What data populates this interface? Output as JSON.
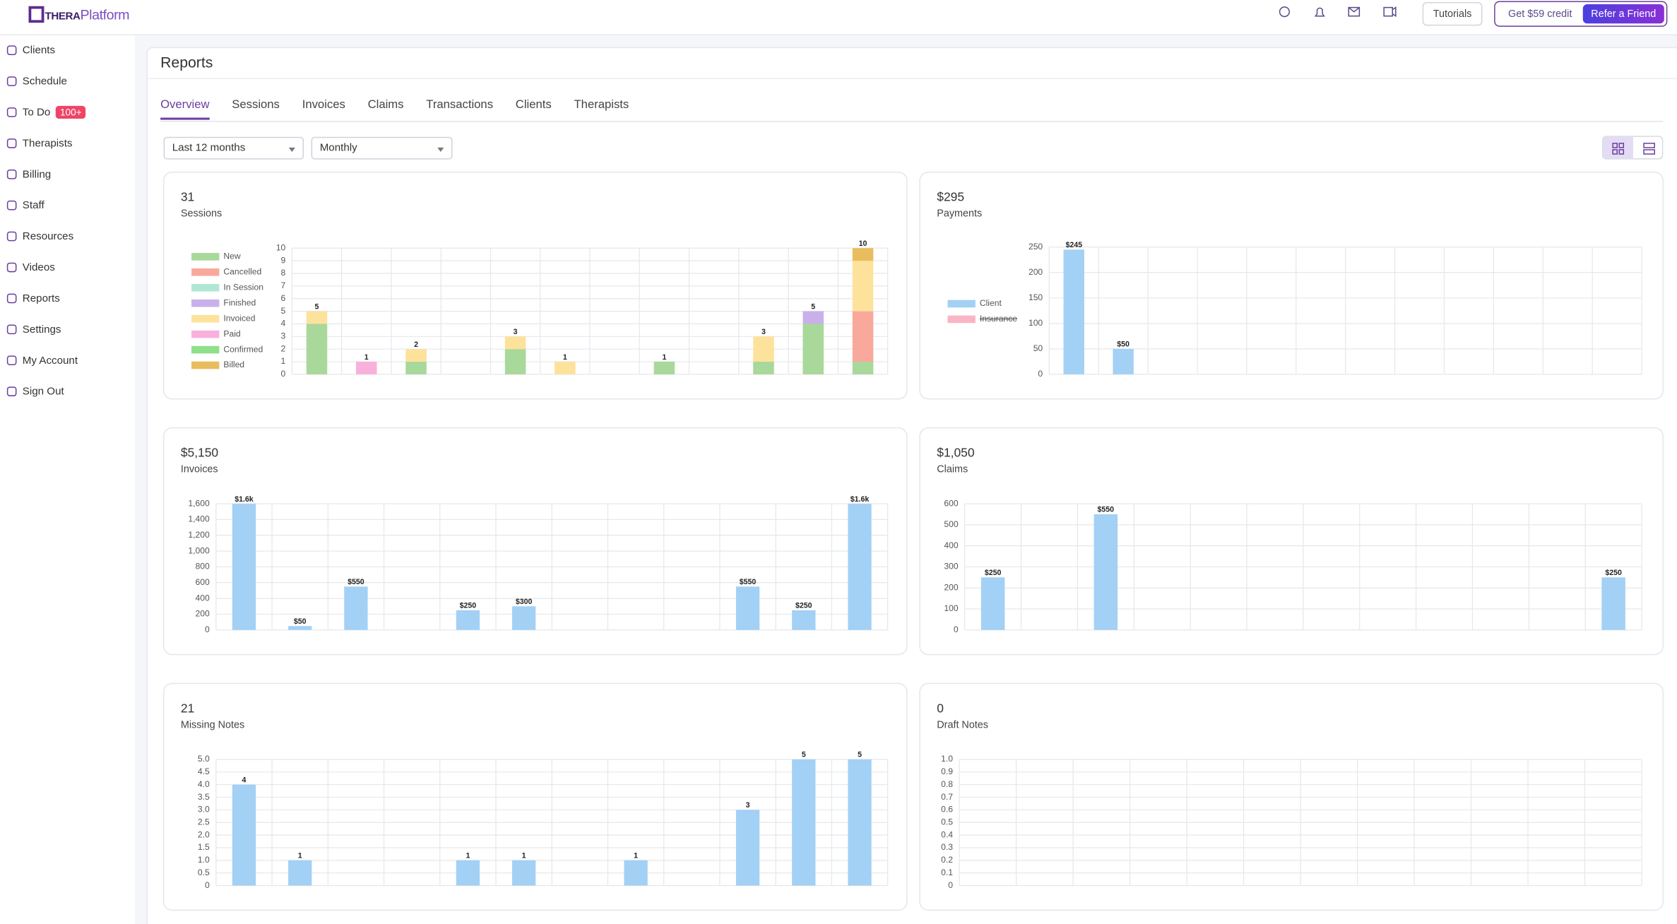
{
  "header": {
    "logo_prefix": "THERA",
    "logo_suffix": "Platform",
    "tutorials": "Tutorials",
    "credit": "Get $59 credit",
    "refer": "Refer a Friend"
  },
  "sidebar": {
    "items": [
      {
        "label": "Clients"
      },
      {
        "label": "Schedule"
      },
      {
        "label": "To Do",
        "badge": "100+"
      },
      {
        "label": "Therapists"
      },
      {
        "label": "Billing"
      },
      {
        "label": "Staff"
      },
      {
        "label": "Resources"
      },
      {
        "label": "Videos"
      },
      {
        "label": "Reports"
      },
      {
        "label": "Settings"
      },
      {
        "label": "My Account"
      },
      {
        "label": "Sign Out"
      }
    ]
  },
  "page": {
    "title": "Reports",
    "tabs": [
      "Overview",
      "Sessions",
      "Invoices",
      "Claims",
      "Transactions",
      "Clients",
      "Therapists"
    ],
    "active_tab": 0,
    "filters": [
      "Last 12 months",
      "Monthly"
    ]
  },
  "chart_data": [
    {
      "type": "stacked_bar",
      "title": "31",
      "subtitle": "Sessions",
      "legend": "left",
      "categories": [
        null,
        null,
        null,
        null,
        null,
        null,
        null,
        null,
        null,
        null,
        null,
        null
      ],
      "series": [
        {
          "name": "New",
          "color": "#a8d89a",
          "values": [
            4,
            0,
            1,
            0,
            2,
            0,
            0,
            1,
            0,
            1,
            4,
            1
          ]
        },
        {
          "name": "Cancelled",
          "color": "#f8a99b",
          "values": [
            0,
            0,
            0,
            0,
            0,
            0,
            0,
            0,
            0,
            0,
            0,
            4
          ]
        },
        {
          "name": "In Session",
          "color": "#b2e6d4",
          "values": [
            0,
            0,
            0,
            0,
            0,
            0,
            0,
            0,
            0,
            0,
            0,
            0
          ]
        },
        {
          "name": "Finished",
          "color": "#c9b0ea",
          "values": [
            0,
            0,
            0,
            0,
            0,
            0,
            0,
            0,
            0,
            0,
            1,
            0
          ]
        },
        {
          "name": "Invoiced",
          "color": "#fde29b",
          "values": [
            1,
            0,
            1,
            0,
            1,
            1,
            0,
            0,
            0,
            2,
            0,
            4
          ]
        },
        {
          "name": "Paid",
          "color": "#f9b1dc",
          "values": [
            0,
            1,
            0,
            0,
            0,
            0,
            0,
            0,
            0,
            0,
            0,
            0
          ]
        },
        {
          "name": "Confirmed",
          "color": "#8fe08a",
          "values": [
            0,
            0,
            0,
            0,
            0,
            0,
            0,
            0,
            0,
            0,
            0,
            0
          ]
        },
        {
          "name": "Billed",
          "color": "#e9bc5e",
          "values": [
            0,
            0,
            0,
            0,
            0,
            0,
            0,
            0,
            0,
            0,
            0,
            1
          ]
        }
      ],
      "totals": [
        5,
        1,
        2,
        null,
        3,
        1,
        null,
        1,
        null,
        3,
        5,
        10
      ],
      "ylim": [
        0,
        10
      ],
      "yticks": [
        0,
        1,
        2,
        3,
        4,
        5,
        6,
        7,
        8,
        9,
        10
      ],
      "grid": true
    },
    {
      "type": "bar",
      "title": "$295",
      "subtitle": "Payments",
      "legend": "left",
      "categories": [
        null,
        null,
        null,
        null,
        null,
        null,
        null,
        null,
        null,
        null,
        null,
        null
      ],
      "series": [
        {
          "name": "Client",
          "color": "#a3d0f5",
          "values": [
            245,
            50,
            0,
            0,
            0,
            0,
            0,
            0,
            0,
            0,
            0,
            0
          ],
          "value_labels": [
            "$245",
            "$50",
            null,
            null,
            null,
            null,
            null,
            null,
            null,
            null,
            null,
            null
          ]
        },
        {
          "name": "Insurance",
          "color": "#f9b5c4",
          "hidden": true,
          "values": [
            null,
            null,
            null,
            null,
            null,
            null,
            null,
            null,
            null,
            null,
            null,
            null
          ]
        }
      ],
      "ylim": [
        0,
        250
      ],
      "yticks": [
        0,
        50,
        100,
        150,
        200,
        250
      ],
      "grid": true
    },
    {
      "type": "bar",
      "title": "$5,150",
      "subtitle": "Invoices",
      "categories": [
        null,
        null,
        null,
        null,
        null,
        null,
        null,
        null,
        null,
        null,
        null,
        null
      ],
      "series": [
        {
          "color": "#a3d0f5",
          "values": [
            1600,
            50,
            550,
            0,
            250,
            300,
            0,
            0,
            0,
            550,
            250,
            1600
          ],
          "value_labels": [
            "$1.6k",
            "$50",
            "$550",
            null,
            "$250",
            "$300",
            null,
            null,
            null,
            "$550",
            "$250",
            "$1.6k"
          ]
        }
      ],
      "ylim": [
        0,
        1600
      ],
      "yticks": [
        0,
        200,
        400,
        600,
        800,
        {
          "value": 1000,
          "label": "1,000"
        },
        {
          "value": 1200,
          "label": "1,200"
        },
        {
          "value": 1400,
          "label": "1,400"
        },
        {
          "value": 1600,
          "label": "1,600"
        }
      ],
      "grid": true
    },
    {
      "type": "bar",
      "title": "$1,050",
      "subtitle": "Claims",
      "categories": [
        null,
        null,
        null,
        null,
        null,
        null,
        null,
        null,
        null,
        null,
        null,
        null
      ],
      "series": [
        {
          "color": "#a3d0f5",
          "values": [
            250,
            0,
            550,
            0,
            0,
            0,
            0,
            0,
            0,
            0,
            0,
            250
          ],
          "value_labels": [
            "$250",
            null,
            "$550",
            null,
            null,
            null,
            null,
            null,
            null,
            null,
            null,
            "$250"
          ]
        }
      ],
      "ylim": [
        0,
        600
      ],
      "yticks": [
        0,
        100,
        200,
        300,
        400,
        500,
        600
      ],
      "grid": true
    },
    {
      "type": "bar",
      "title": "21",
      "subtitle": "Missing Notes",
      "categories": [
        null,
        null,
        null,
        null,
        null,
        null,
        null,
        null,
        null,
        null,
        null,
        null
      ],
      "series": [
        {
          "color": "#a3d0f5",
          "values": [
            4,
            1,
            0,
            0,
            1,
            1,
            0,
            1,
            0,
            3,
            5,
            5
          ],
          "value_labels": [
            "4",
            "1",
            null,
            null,
            "1",
            "1",
            null,
            "1",
            null,
            "3",
            "5",
            "5"
          ]
        }
      ],
      "ylim": [
        0,
        5
      ],
      "yticks": [
        0,
        0.5,
        {
          "value": 1,
          "label": "1.0"
        },
        1.5,
        {
          "value": 2,
          "label": "2.0"
        },
        2.5,
        {
          "value": 3,
          "label": "3.0"
        },
        3.5,
        {
          "value": 4,
          "label": "4.0"
        },
        4.5,
        {
          "value": 5,
          "label": "5.0"
        }
      ],
      "grid": true
    },
    {
      "type": "bar",
      "title": "0",
      "subtitle": "Draft Notes",
      "categories": [
        null,
        null,
        null,
        null,
        null,
        null,
        null,
        null,
        null,
        null,
        null,
        null
      ],
      "series": [
        {
          "color": "#a3d0f5",
          "values": [
            0,
            0,
            0,
            0,
            0,
            0,
            0,
            0,
            0,
            0,
            0,
            0
          ]
        }
      ],
      "ylim": [
        0,
        1
      ],
      "yticks": [
        0,
        0.1,
        0.2,
        0.3,
        0.4,
        0.5,
        0.6,
        0.7,
        0.8,
        0.9,
        {
          "value": 1,
          "label": "1.0"
        }
      ],
      "grid": true
    }
  ]
}
